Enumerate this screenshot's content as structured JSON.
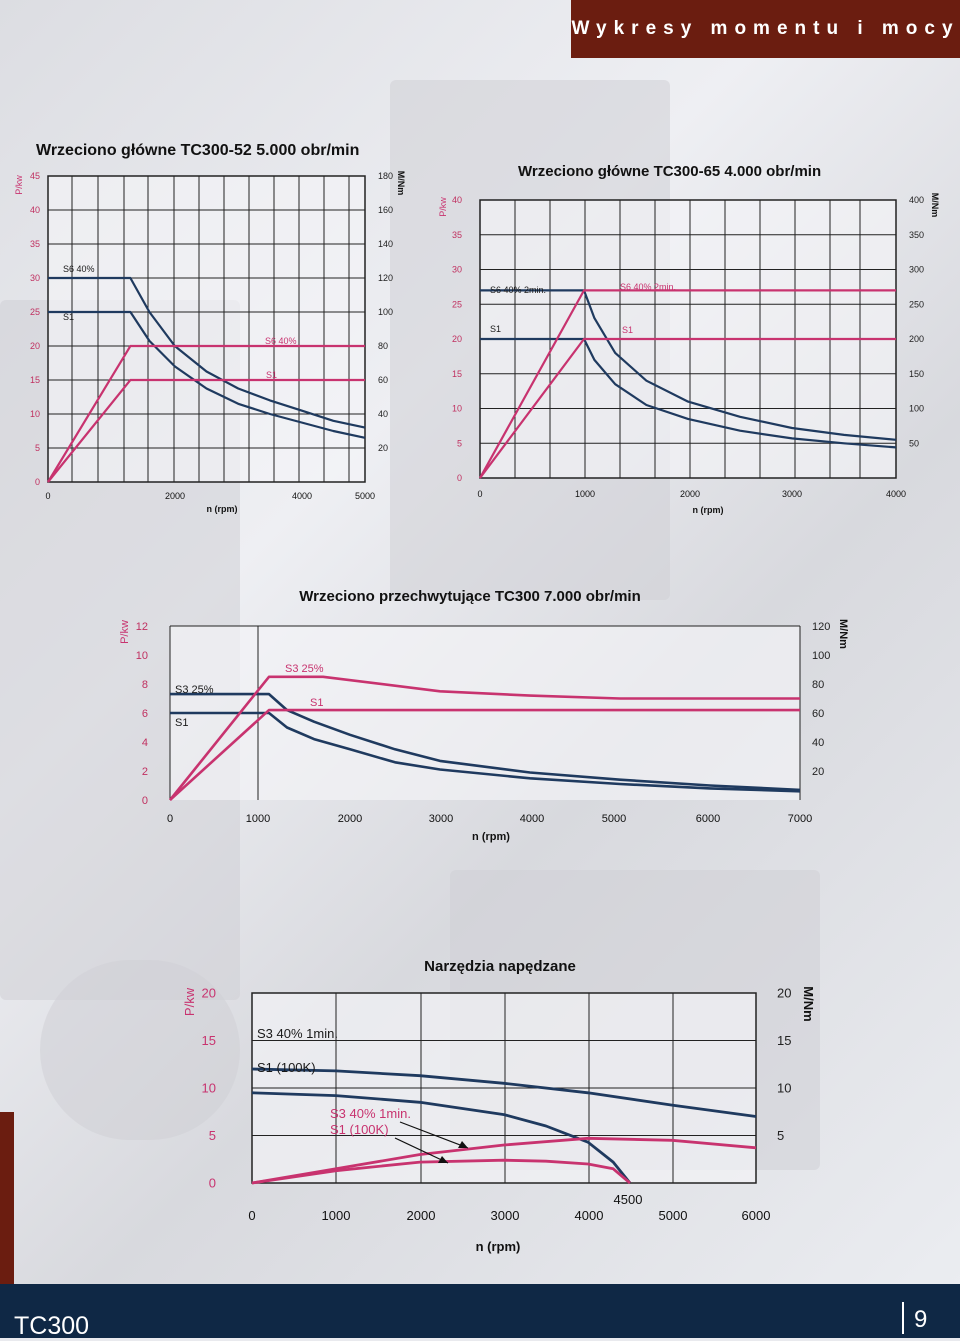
{
  "header": {
    "title": "Wykresy momentu i mocy"
  },
  "footer": {
    "brand": "TC300",
    "page": "9"
  },
  "colors": {
    "torque": "#1f3a5f",
    "power": "#c8336f",
    "header": "#6b1d10",
    "footer": "#0f2845"
  },
  "chart_data": [
    {
      "type": "line",
      "title": "Wrzeciono główne TC300-52 5.000 obr/min",
      "xlabel": "n (rpm)",
      "ylabel_left": "P/kw",
      "ylabel_right": "M/Nm",
      "xlim": [
        0,
        5000
      ],
      "ylim": [
        0,
        45
      ],
      "y2lim": [
        0,
        180
      ],
      "xticks": [
        "0",
        "2000",
        "4000",
        "5000"
      ],
      "yticks": [
        "0",
        "5",
        "10",
        "15",
        "20",
        "25",
        "30",
        "35",
        "40",
        "45"
      ],
      "y2ticks": [
        "20",
        "40",
        "60",
        "80",
        "100",
        "120",
        "140",
        "160",
        "180"
      ],
      "grid": true,
      "series": [
        {
          "name": "S6 40%",
          "axis": "right",
          "color": "torque",
          "x": [
            0,
            1300,
            1600,
            2000,
            2500,
            3000,
            3500,
            4000,
            4500,
            5000
          ],
          "y": [
            120,
            120,
            100,
            80,
            65,
            55,
            48,
            42,
            36,
            32
          ]
        },
        {
          "name": "S1",
          "axis": "right",
          "color": "torque",
          "x": [
            0,
            1300,
            1600,
            2000,
            2500,
            3000,
            3500,
            4000,
            4500,
            5000
          ],
          "y": [
            100,
            100,
            83,
            68,
            55,
            46,
            40,
            35,
            30,
            26
          ]
        },
        {
          "name": "S6 40%",
          "axis": "left",
          "color": "power",
          "x": [
            0,
            1300,
            5000
          ],
          "y": [
            0,
            20,
            20
          ]
        },
        {
          "name": "S1",
          "axis": "left",
          "color": "power",
          "x": [
            0,
            1300,
            5000
          ],
          "y": [
            0,
            15,
            15
          ]
        }
      ],
      "annotations": [
        "S6 40%",
        "S1",
        "S6 40%",
        "S1"
      ]
    },
    {
      "type": "line",
      "title": "Wrzeciono główne TC300-65 4.000 obr/min",
      "xlabel": "n (rpm)",
      "ylabel_left": "P/kw",
      "ylabel_right": "M/Nm",
      "xlim": [
        0,
        4000
      ],
      "ylim": [
        0,
        40
      ],
      "y2lim": [
        0,
        400
      ],
      "xticks": [
        "0",
        "1000",
        "2000",
        "3000",
        "4000"
      ],
      "yticks": [
        "0",
        "5",
        "10",
        "15",
        "20",
        "25",
        "30",
        "35",
        "40"
      ],
      "y2ticks": [
        "50",
        "100",
        "150",
        "200",
        "250",
        "300",
        "350",
        "400"
      ],
      "grid": true,
      "series": [
        {
          "name": "S6 40% 2min.",
          "axis": "right",
          "color": "torque",
          "x": [
            0,
            1000,
            1100,
            1300,
            1600,
            2000,
            2500,
            3000,
            3500,
            4000
          ],
          "y": [
            270,
            270,
            230,
            180,
            140,
            110,
            88,
            72,
            62,
            55
          ]
        },
        {
          "name": "S1",
          "axis": "right",
          "color": "torque",
          "x": [
            0,
            1000,
            1100,
            1300,
            1600,
            2000,
            2500,
            3000,
            3500,
            4000
          ],
          "y": [
            200,
            200,
            170,
            135,
            105,
            85,
            68,
            57,
            50,
            44
          ]
        },
        {
          "name": "S6 40% 2min.",
          "axis": "left",
          "color": "power",
          "x": [
            0,
            1000,
            4000
          ],
          "y": [
            0,
            27,
            27
          ]
        },
        {
          "name": "S1",
          "axis": "left",
          "color": "power",
          "x": [
            0,
            1000,
            4000
          ],
          "y": [
            0,
            20,
            20
          ]
        }
      ],
      "annotations": [
        "S6 40% 2min.",
        "S1",
        "S6 40% 2min.",
        "S1"
      ]
    },
    {
      "type": "line",
      "title": "Wrzeciono przechwytujące TC300 7.000 obr/min",
      "xlabel": "n (rpm)",
      "ylabel_left": "P/kw",
      "ylabel_right": "M/Nm",
      "xlim": [
        0,
        7000
      ],
      "ylim": [
        0,
        12
      ],
      "y2lim": [
        0,
        120
      ],
      "xticks": [
        "0",
        "1000",
        "2000",
        "3000",
        "4000",
        "5000",
        "6000",
        "7000"
      ],
      "yticks": [
        "0",
        "2",
        "4",
        "6",
        "8",
        "10",
        "12"
      ],
      "y2ticks": [
        "20",
        "40",
        "60",
        "80",
        "100",
        "120"
      ],
      "grid": false,
      "series": [
        {
          "name": "S3 25%",
          "axis": "right",
          "color": "torque",
          "x": [
            0,
            1100,
            1300,
            1600,
            2000,
            2500,
            3000,
            4000,
            5000,
            6000,
            7000
          ],
          "y": [
            73,
            73,
            62,
            54,
            45,
            35,
            27,
            19,
            14,
            10,
            7
          ]
        },
        {
          "name": "S1",
          "axis": "right",
          "color": "torque",
          "x": [
            0,
            1100,
            1300,
            1600,
            2000,
            2500,
            3000,
            4000,
            5000,
            6000,
            7000
          ],
          "y": [
            60,
            60,
            50,
            42,
            35,
            26,
            21,
            15,
            11,
            8,
            6
          ]
        },
        {
          "name": "S3 25%",
          "axis": "left",
          "color": "power",
          "x": [
            0,
            1100,
            1700,
            3000,
            4000,
            5000,
            7000
          ],
          "y": [
            0,
            8.5,
            8.5,
            7.5,
            7.2,
            7.0,
            7.0
          ]
        },
        {
          "name": "S1",
          "axis": "left",
          "color": "power",
          "x": [
            0,
            1100,
            7000
          ],
          "y": [
            0,
            6.2,
            6.2
          ]
        }
      ],
      "annotations": [
        "S3 25%",
        "S1",
        "S3 25%",
        "S1"
      ]
    },
    {
      "type": "line",
      "title": "Narzędzia napędzane",
      "xlabel": "n (rpm)",
      "ylabel_left": "P/kw",
      "ylabel_right": "M/Nm",
      "xlim": [
        0,
        6000
      ],
      "ylim": [
        0,
        20
      ],
      "y2lim": [
        0,
        20
      ],
      "xticks": [
        "0",
        "1000",
        "2000",
        "3000",
        "4000",
        "4500",
        "5000",
        "6000"
      ],
      "yticks": [
        "0",
        "5",
        "10",
        "15",
        "20"
      ],
      "y2ticks": [
        "5",
        "10",
        "15",
        "20"
      ],
      "grid": true,
      "series": [
        {
          "name": "S3 40% 1min.",
          "axis": "right",
          "color": "torque",
          "x": [
            0,
            1000,
            2000,
            3000,
            4000,
            5000,
            6000
          ],
          "y": [
            12,
            11.8,
            11.3,
            10.5,
            9.5,
            8.2,
            7
          ]
        },
        {
          "name": "S1 (100K)",
          "axis": "right",
          "color": "torque",
          "x": [
            0,
            1000,
            2000,
            3000,
            3500,
            4000,
            4300,
            4500
          ],
          "y": [
            9.5,
            9.2,
            8.5,
            7.2,
            6.0,
            4.3,
            2.2,
            0
          ]
        },
        {
          "name": "S3 40% 1min.",
          "axis": "left",
          "color": "power",
          "x": [
            0,
            1000,
            2000,
            3000,
            4000,
            5000,
            6000
          ],
          "y": [
            0,
            1.5,
            3.0,
            4.0,
            4.7,
            4.5,
            3.7
          ]
        },
        {
          "name": "S1 (100K)",
          "axis": "left",
          "color": "power",
          "x": [
            0,
            1000,
            2000,
            3000,
            3500,
            4000,
            4300,
            4500
          ],
          "y": [
            0,
            1.3,
            2.2,
            2.4,
            2.3,
            2.0,
            1.5,
            0
          ]
        }
      ],
      "annotations": [
        "S3 40% 1min.",
        "S1 (100K)",
        "S3 40% 1min.",
        "S1 (100K)"
      ]
    }
  ]
}
